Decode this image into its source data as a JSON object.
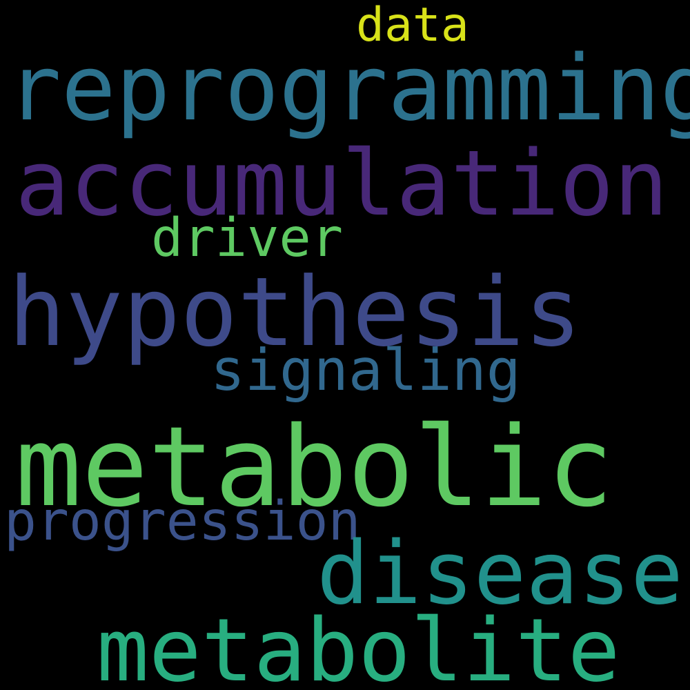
{
  "background": "#000000",
  "words": {
    "data": {
      "text": "data",
      "color": "#d8e219"
    },
    "reprogramming": {
      "text": "reprogramming",
      "color": "#2c728e"
    },
    "accumulation": {
      "text": "accumulation",
      "color": "#482878"
    },
    "driver": {
      "text": "driver",
      "color": "#5ec962"
    },
    "hypothesis": {
      "text": "hypothesis",
      "color": "#3e4a89"
    },
    "signaling": {
      "text": "signaling",
      "color": "#31688e"
    },
    "metabolic": {
      "text": "metabolic",
      "color": "#5ec962"
    },
    "progression": {
      "text": "progression",
      "color": "#3b528b"
    },
    "disease": {
      "text": "disease",
      "color": "#21918c"
    },
    "metabolite": {
      "text": "metabolite",
      "color": "#28ae80"
    }
  }
}
